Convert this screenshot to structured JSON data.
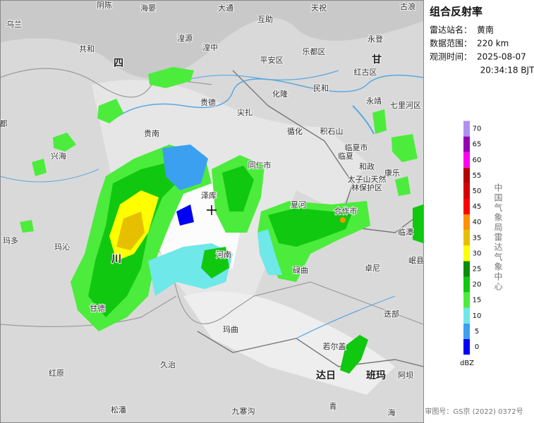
{
  "panel": {
    "title": "组合反射率",
    "rows": [
      {
        "label": "雷达站名：",
        "value": "黄南"
      },
      {
        "label": "数据范围：",
        "value": "220 km"
      },
      {
        "label": "观测时间：",
        "value": "2025-08-07"
      }
    ],
    "time_line2": "20:34:18 BJT",
    "agency": "中国气象局雷达气象中心",
    "footer": "审图号：GS京 (2022) 0372号"
  },
  "legend": {
    "unit": "dBZ",
    "ticks": [
      0,
      5,
      10,
      15,
      20,
      25,
      30,
      35,
      40,
      45,
      50,
      55,
      60,
      65,
      70
    ],
    "colors": [
      "#0000f6",
      "#3ca0f0",
      "#6ee8e8",
      "#4cec3c",
      "#10c810",
      "#088c08",
      "#ffff00",
      "#e6c000",
      "#ff9000",
      "#ff0000",
      "#d60000",
      "#b40000",
      "#ff00f0",
      "#9600b4",
      "#ad90f0"
    ]
  },
  "map_labels": [
    "乌兰",
    "共和",
    "阴陈",
    "海晏",
    "大通",
    "互助",
    "天祝",
    "古浪",
    "湟源",
    "湟中",
    "平安区",
    "乐都区",
    "永登",
    "甘",
    "红古区",
    "民和",
    "化隆",
    "永靖",
    "贵德",
    "尖扎",
    "循化",
    "积石山",
    "临夏市",
    "临夏",
    "和政",
    "康乐",
    "太子山天然",
    "林保护区",
    "七里河区",
    "贵南",
    "兴海",
    "同仁市",
    "夏河",
    "合作市",
    "泽库",
    "河南",
    "碌曲",
    "卓尼",
    "迭部",
    "玛沁",
    "玛多",
    "甘德",
    "玛曲",
    "久治",
    "若尔盖",
    "达日",
    "班玛",
    "阿坝",
    "红原",
    "松潘",
    "九寨沟",
    "青",
    "海",
    "四",
    "川",
    "都",
    "临潭",
    "岷县"
  ]
}
